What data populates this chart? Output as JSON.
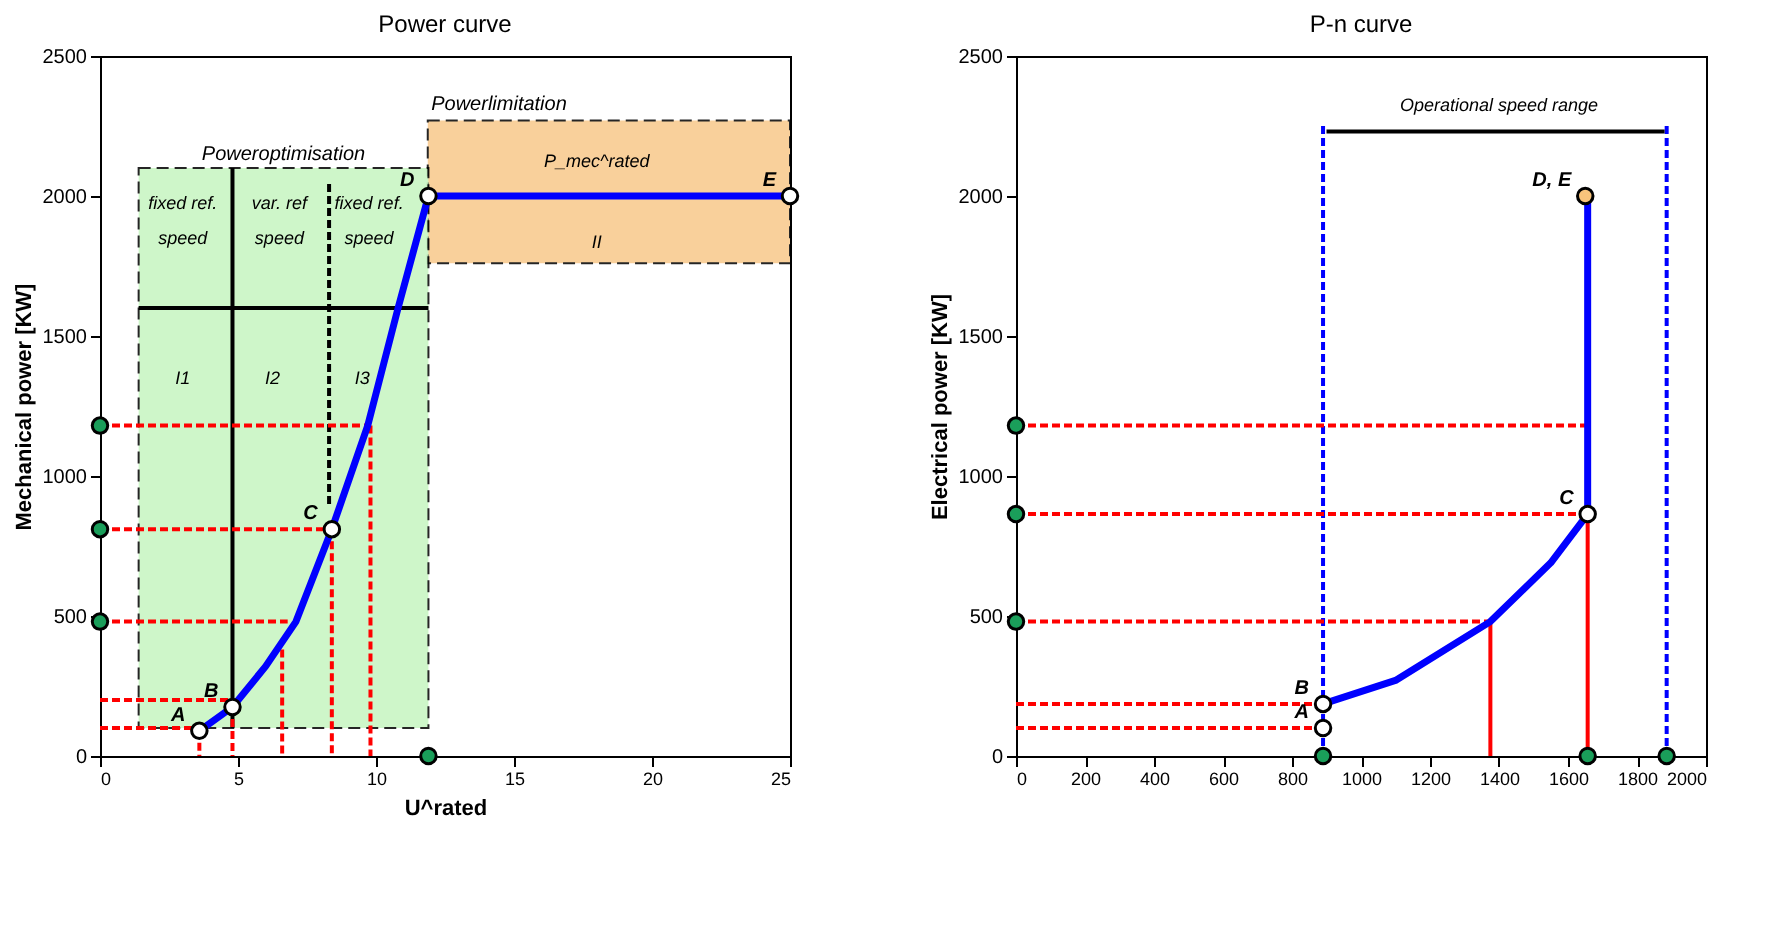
{
  "chart_data": [
    {
      "type": "line",
      "title": "Power curve",
      "xlabel": "U^rated",
      "ylabel": "Mechanical power [KW]",
      "xlim": [
        0,
        25
      ],
      "xticks": [
        0,
        5,
        10,
        15,
        20,
        25
      ],
      "ylim": [
        0,
        2500
      ],
      "yticks": [
        0,
        500,
        1000,
        1500,
        2000,
        2500
      ],
      "grid": false,
      "bands": [
        {
          "axis": "y",
          "from": 1760,
          "to": 2270,
          "label": "Powerlimitation",
          "color": "#f9c88a"
        },
        {
          "axis": "x",
          "from": 1.4,
          "to": 11.9,
          "label": "Poweroptimisation",
          "color": "#c6f5c0"
        }
      ],
      "series": [
        {
          "color": "#000000",
          "line_style": "solid",
          "x": [
            4.8,
            4.8
          ],
          "values": [
            100,
            2100
          ]
        },
        {
          "color": "#000000",
          "line_style": "dashed",
          "x": [
            8.3,
            8.3
          ],
          "values": [
            900,
            2050
          ]
        },
        {
          "color": "#000000",
          "line_style": "solid",
          "x": [
            1.4,
            11.9
          ],
          "values": [
            1600,
            1600
          ]
        },
        {
          "color": "#ff0000",
          "line_style": "dashed",
          "x": [
            0,
            9.7
          ],
          "values": [
            1180,
            1180
          ]
        },
        {
          "color": "#ff0000",
          "line_style": "dashed",
          "x": [
            0,
            8.4
          ],
          "values": [
            810,
            810
          ]
        },
        {
          "color": "#ff0000",
          "line_style": "dashed",
          "x": [
            0,
            6.8
          ],
          "values": [
            480,
            480
          ]
        },
        {
          "color": "#ff0000",
          "line_style": "dashed",
          "x": [
            0,
            4.8
          ],
          "values": [
            200,
            200
          ]
        },
        {
          "color": "#ff0000",
          "line_style": "dashed",
          "x": [
            0,
            3.6
          ],
          "values": [
            100,
            100
          ]
        },
        {
          "color": "#ff0000",
          "line_style": "dashed",
          "x": [
            3.6,
            3.6
          ],
          "values": [
            90,
            0
          ]
        },
        {
          "color": "#ff0000",
          "line_style": "dashed",
          "x": [
            4.8,
            4.8
          ],
          "values": [
            175,
            0
          ]
        },
        {
          "color": "#ff0000",
          "line_style": "dashed",
          "x": [
            6.6,
            6.6
          ],
          "values": [
            380,
            0
          ]
        },
        {
          "color": "#ff0000",
          "line_style": "dashed",
          "x": [
            8.4,
            8.4
          ],
          "values": [
            810,
            0
          ]
        },
        {
          "color": "#ff0000",
          "line_style": "dashed",
          "x": [
            9.8,
            9.8
          ],
          "values": [
            1180,
            0
          ]
        },
        {
          "color": "#0000ff",
          "line_style": "solid",
          "x": [
            3.6,
            4.8,
            6,
            7.1,
            8.4,
            9.7,
            10.8,
            11.9,
            25
          ],
          "values": [
            90,
            175,
            320,
            480,
            810,
            1180,
            1600,
            2000,
            2000
          ]
        },
        {
          "type": "scatter",
          "color": "#1a9e5a",
          "marker": "circle",
          "x": [
            0,
            0,
            0,
            11.9
          ],
          "values": [
            480,
            810,
            1180,
            0
          ]
        },
        {
          "type": "scatter",
          "color": "#ffffff",
          "marker": "circle",
          "x": [
            3.6,
            4.8,
            8.4,
            11.9,
            25
          ],
          "values": [
            90,
            175,
            810,
            2000,
            2000
          ]
        }
      ],
      "annotations": [
        {
          "text": "A",
          "x": 3.6,
          "y": 90
        },
        {
          "text": "B",
          "x": 4.8,
          "y": 175
        },
        {
          "text": "C",
          "x": 8.4,
          "y": 810
        },
        {
          "text": "D",
          "x": 11.9,
          "y": 2000
        },
        {
          "text": "E",
          "x": 25,
          "y": 2000
        },
        "P_mec^rated",
        "II",
        "I1",
        "I2",
        "I3",
        "fixed ref.",
        "speed",
        "var. ref",
        "speed",
        "fixed ref.",
        "speed"
      ]
    },
    {
      "type": "line",
      "title": "P-n curve",
      "ylabel": "Electrical  power [KW]",
      "xlim": [
        0,
        2000
      ],
      "xticks": [
        0,
        200,
        400,
        600,
        800,
        1000,
        1200,
        1400,
        1600,
        1800,
        2000
      ],
      "ylim": [
        0,
        2500
      ],
      "yticks": [
        0,
        500,
        1000,
        1500,
        2000,
        2500
      ],
      "grid": false,
      "ref_lines": [
        {
          "axis": "x",
          "value": 890,
          "color": "#0000ff",
          "line_style": "dashed"
        },
        {
          "axis": "x",
          "value": 1886,
          "color": "#0000ff",
          "line_style": "dashed"
        }
      ],
      "series": [
        {
          "color": "#000000",
          "line_style": "solid",
          "x": [
            900,
            1880
          ],
          "values": [
            2230,
            2230
          ]
        },
        {
          "color": "#ff0000",
          "line_style": "dashed",
          "x": [
            0,
            1657
          ],
          "values": [
            1180,
            1180
          ]
        },
        {
          "color": "#ff0000",
          "line_style": "dashed",
          "x": [
            0,
            1657
          ],
          "values": [
            864,
            864
          ]
        },
        {
          "color": "#ff0000",
          "line_style": "dashed",
          "x": [
            0,
            1375
          ],
          "values": [
            480,
            480
          ]
        },
        {
          "color": "#ff0000",
          "line_style": "dashed",
          "x": [
            0,
            890
          ],
          "values": [
            186,
            186
          ]
        },
        {
          "color": "#ff0000",
          "line_style": "dashed",
          "x": [
            0,
            890
          ],
          "values": [
            100,
            100
          ]
        },
        {
          "color": "#ff0000",
          "line_style": "solid",
          "x": [
            1375,
            1375
          ],
          "values": [
            480,
            0
          ]
        },
        {
          "color": "#ff0000",
          "line_style": "solid",
          "x": [
            1657,
            1657
          ],
          "values": [
            1180,
            0
          ]
        },
        {
          "color": "#0000ff",
          "line_style": "solid",
          "x": [
            890,
            1100,
            1375,
            1550,
            1657,
            1657
          ],
          "values": [
            186,
            270,
            480,
            690,
            864,
            2000
          ]
        },
        {
          "type": "scatter",
          "color": "#1a9e5a",
          "marker": "circle",
          "x": [
            0,
            0,
            0,
            890,
            1657,
            1886
          ],
          "values": [
            480,
            864,
            1180,
            0,
            0,
            0
          ]
        },
        {
          "type": "scatter",
          "color": "#ffffff",
          "marker": "circle",
          "x": [
            890,
            890,
            1657
          ],
          "values": [
            100,
            186,
            864
          ]
        },
        {
          "type": "scatter",
          "color": "#f8c47c",
          "marker": "circle",
          "x": [
            1650
          ],
          "values": [
            2000
          ]
        }
      ],
      "annotations": [
        "Operational speed range",
        {
          "text": "A",
          "x": 890,
          "y": 100
        },
        {
          "text": "B",
          "x": 890,
          "y": 186
        },
        {
          "text": "C",
          "x": 1657,
          "y": 864
        },
        {
          "text": "D, E",
          "x": 1650,
          "y": 2000
        }
      ]
    }
  ]
}
